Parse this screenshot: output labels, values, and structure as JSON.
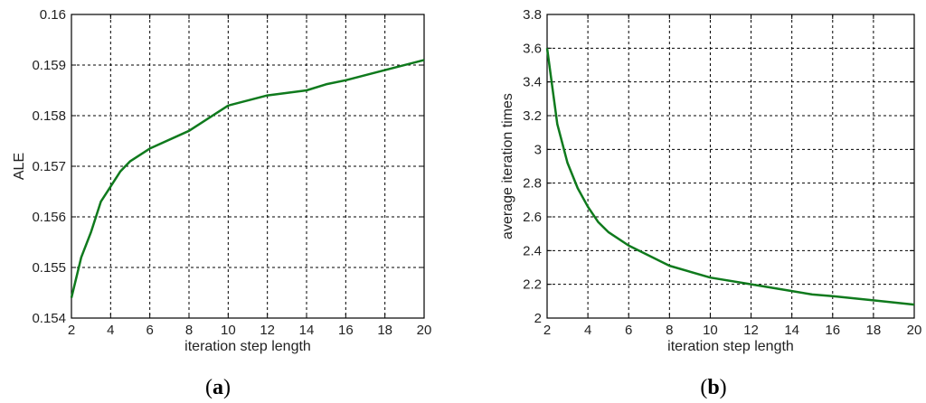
{
  "panels": [
    {
      "caption": "(a)",
      "caption_parts": [
        "(",
        "a",
        ")"
      ]
    },
    {
      "caption": "(b)",
      "caption_parts": [
        "(",
        "b",
        ")"
      ]
    }
  ],
  "colors": {
    "line": "#0f7a1d",
    "grid": "#000000",
    "frame": "#000000",
    "background": "#ffffff"
  },
  "chart_data": [
    {
      "type": "line",
      "title": "",
      "xlabel": "iteration step length",
      "ylabel": "ALE",
      "xlim": [
        2,
        20
      ],
      "ylim": [
        0.154,
        0.16
      ],
      "grid": true,
      "x_ticks": [
        2,
        4,
        6,
        8,
        10,
        12,
        14,
        16,
        18,
        20
      ],
      "x_tick_labels": [
        "2",
        "4",
        "6",
        "8",
        "10",
        "12",
        "14",
        "16",
        "18",
        "20"
      ],
      "y_ticks": [
        0.154,
        0.155,
        0.156,
        0.157,
        0.158,
        0.159,
        0.16
      ],
      "y_tick_labels": [
        "0.154",
        "0.155",
        "0.156",
        "0.157",
        "0.158",
        "0.159",
        "0.16"
      ],
      "series": [
        {
          "x": [
            2,
            2.5,
            3,
            3.5,
            4,
            4.5,
            5,
            6,
            8,
            10,
            12,
            14,
            15,
            16,
            18,
            20
          ],
          "y": [
            0.1544,
            0.1552,
            0.1557,
            0.1563,
            0.1566,
            0.1569,
            0.1571,
            0.15735,
            0.1577,
            0.1582,
            0.1584,
            0.1585,
            0.15862,
            0.1587,
            0.1589,
            0.1591
          ]
        }
      ]
    },
    {
      "type": "line",
      "title": "",
      "xlabel": "iteration step length",
      "ylabel": "average iteration times",
      "xlim": [
        2,
        20
      ],
      "ylim": [
        2,
        3.8
      ],
      "grid": true,
      "x_ticks": [
        2,
        4,
        6,
        8,
        10,
        12,
        14,
        16,
        18,
        20
      ],
      "x_tick_labels": [
        "2",
        "4",
        "6",
        "8",
        "10",
        "12",
        "14",
        "16",
        "18",
        "20"
      ],
      "y_ticks": [
        2,
        2.2,
        2.4,
        2.6,
        2.8,
        3,
        3.2,
        3.4,
        3.6,
        3.8
      ],
      "y_tick_labels": [
        "2",
        "2.2",
        "2.4",
        "2.6",
        "2.8",
        "3",
        "3.2",
        "3.4",
        "3.6",
        "3.8"
      ],
      "series": [
        {
          "x": [
            2,
            2.5,
            3,
            3.5,
            4,
            4.5,
            5,
            6,
            8,
            10,
            12,
            14,
            15,
            16,
            18,
            20
          ],
          "y": [
            3.6,
            3.15,
            2.92,
            2.77,
            2.66,
            2.57,
            2.51,
            2.43,
            2.31,
            2.24,
            2.2,
            2.16,
            2.14,
            2.13,
            2.105,
            2.08
          ]
        }
      ]
    }
  ]
}
